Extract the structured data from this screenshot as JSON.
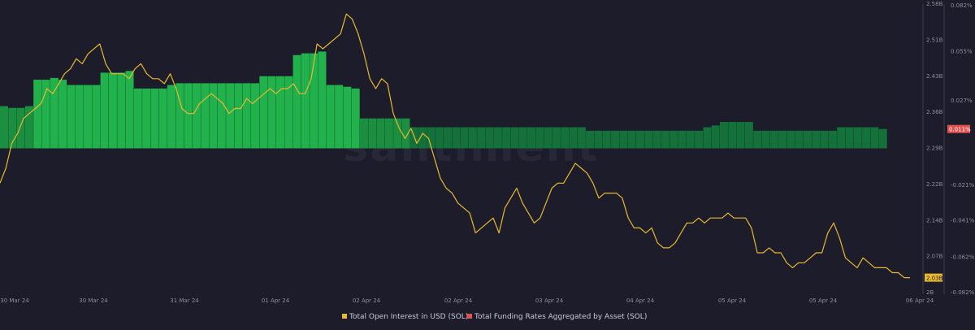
{
  "chart_data": {
    "type": "bar+line",
    "title": "",
    "watermark": "santiment",
    "x_axis": {
      "tick_labels": [
        "30 Mar 24",
        "30 Mar 24",
        "31 Mar 24",
        "01 Apr 24",
        "02 Apr 24",
        "02 Apr 24",
        "03 Apr 24",
        "04 Apr 24",
        "05 Apr 24",
        "05 Apr 24",
        "06 Apr 24"
      ]
    },
    "y_axis_left": {
      "label": "",
      "unit": "USD",
      "range": [
        2.0,
        2.58
      ],
      "tick_labels": [
        "2.58B",
        "2.51B",
        "2.43B",
        "2.36B",
        "2.29B",
        "2.22B",
        "2.14B",
        "2.07B",
        "2B"
      ]
    },
    "y_axis_right": {
      "label": "",
      "unit": "%",
      "range": [
        -0.082,
        0.082
      ],
      "tick_labels": [
        "0.082%",
        "0.055%",
        "0.027%",
        "-0.021%",
        "-0.041%",
        "-0.062%",
        "-0.082%"
      ]
    },
    "current_value_labels": {
      "open_interest": "2.03B",
      "funding_rate": "0.011%"
    },
    "series": [
      {
        "name": "Total Open Interest in USD (SOL)",
        "kind": "line",
        "axis": "left",
        "color": "#e8b930",
        "values": [
          2.22,
          2.25,
          2.3,
          2.32,
          2.35,
          2.36,
          2.37,
          2.38,
          2.41,
          2.4,
          2.42,
          2.44,
          2.45,
          2.47,
          2.46,
          2.48,
          2.49,
          2.5,
          2.46,
          2.44,
          2.44,
          2.44,
          2.43,
          2.45,
          2.46,
          2.44,
          2.43,
          2.43,
          2.42,
          2.44,
          2.41,
          2.37,
          2.36,
          2.36,
          2.38,
          2.39,
          2.4,
          2.39,
          2.38,
          2.36,
          2.37,
          2.37,
          2.39,
          2.38,
          2.39,
          2.4,
          2.41,
          2.4,
          2.41,
          2.41,
          2.42,
          2.4,
          2.4,
          2.43,
          2.5,
          2.49,
          2.5,
          2.51,
          2.52,
          2.56,
          2.55,
          2.52,
          2.48,
          2.43,
          2.41,
          2.43,
          2.42,
          2.36,
          2.33,
          2.31,
          2.33,
          2.3,
          2.32,
          2.31,
          2.27,
          2.23,
          2.21,
          2.2,
          2.18,
          2.17,
          2.16,
          2.12,
          2.13,
          2.14,
          2.15,
          2.12,
          2.17,
          2.19,
          2.21,
          2.18,
          2.16,
          2.14,
          2.15,
          2.18,
          2.21,
          2.22,
          2.22,
          2.24,
          2.26,
          2.25,
          2.24,
          2.22,
          2.19,
          2.2,
          2.2,
          2.2,
          2.19,
          2.15,
          2.13,
          2.13,
          2.12,
          2.13,
          2.1,
          2.09,
          2.09,
          2.1,
          2.12,
          2.14,
          2.14,
          2.15,
          2.14,
          2.15,
          2.15,
          2.15,
          2.16,
          2.15,
          2.15,
          2.15,
          2.13,
          2.08,
          2.08,
          2.09,
          2.08,
          2.08,
          2.06,
          2.05,
          2.06,
          2.06,
          2.07,
          2.08,
          2.08,
          2.12,
          2.14,
          2.11,
          2.07,
          2.06,
          2.05,
          2.07,
          2.06,
          2.05,
          2.05,
          2.05,
          2.04,
          2.04,
          2.03,
          2.03
        ]
      },
      {
        "name": "Total Funding Rates Aggregated by Asset (SOL)",
        "kind": "bar",
        "axis": "right",
        "color": "#e5514f",
        "values": [
          0.024,
          0.023,
          0.023,
          0.024,
          0.039,
          0.039,
          0.04,
          0.039,
          0.036,
          0.036,
          0.036,
          0.036,
          0.043,
          0.043,
          0.043,
          0.044,
          0.034,
          0.034,
          0.034,
          0.034,
          0.036,
          0.037,
          0.037,
          0.037,
          0.037,
          0.037,
          0.037,
          0.037,
          0.037,
          0.037,
          0.037,
          0.041,
          0.041,
          0.041,
          0.041,
          0.053,
          0.054,
          0.054,
          0.055,
          0.036,
          0.036,
          0.035,
          0.034,
          0.017,
          0.017,
          0.017,
          0.017,
          0.017,
          0.017,
          0.012,
          0.012,
          0.012,
          0.012,
          0.012,
          0.012,
          0.012,
          0.012,
          0.012,
          0.012,
          0.012,
          0.012,
          0.012,
          0.012,
          0.012,
          0.012,
          0.012,
          0.012,
          0.012,
          0.012,
          0.012,
          0.01,
          0.01,
          0.01,
          0.01,
          0.01,
          0.01,
          0.01,
          0.01,
          0.01,
          0.01,
          0.01,
          0.01,
          0.01,
          0.01,
          0.012,
          0.013,
          0.015,
          0.015,
          0.015,
          0.015,
          0.01,
          0.01,
          0.01,
          0.01,
          0.01,
          0.01,
          0.01,
          0.01,
          0.01,
          0.01,
          0.012,
          0.012,
          0.012,
          0.012,
          0.012,
          0.011
        ]
      }
    ]
  },
  "legend": {
    "placement": "bottom-center",
    "items": [
      {
        "label": "Total Open Interest in USD (SOL)",
        "color": "#e8b930"
      },
      {
        "label": "Total Funding Rates Aggregated by Asset (SOL)",
        "color": "#e5514f"
      }
    ]
  }
}
